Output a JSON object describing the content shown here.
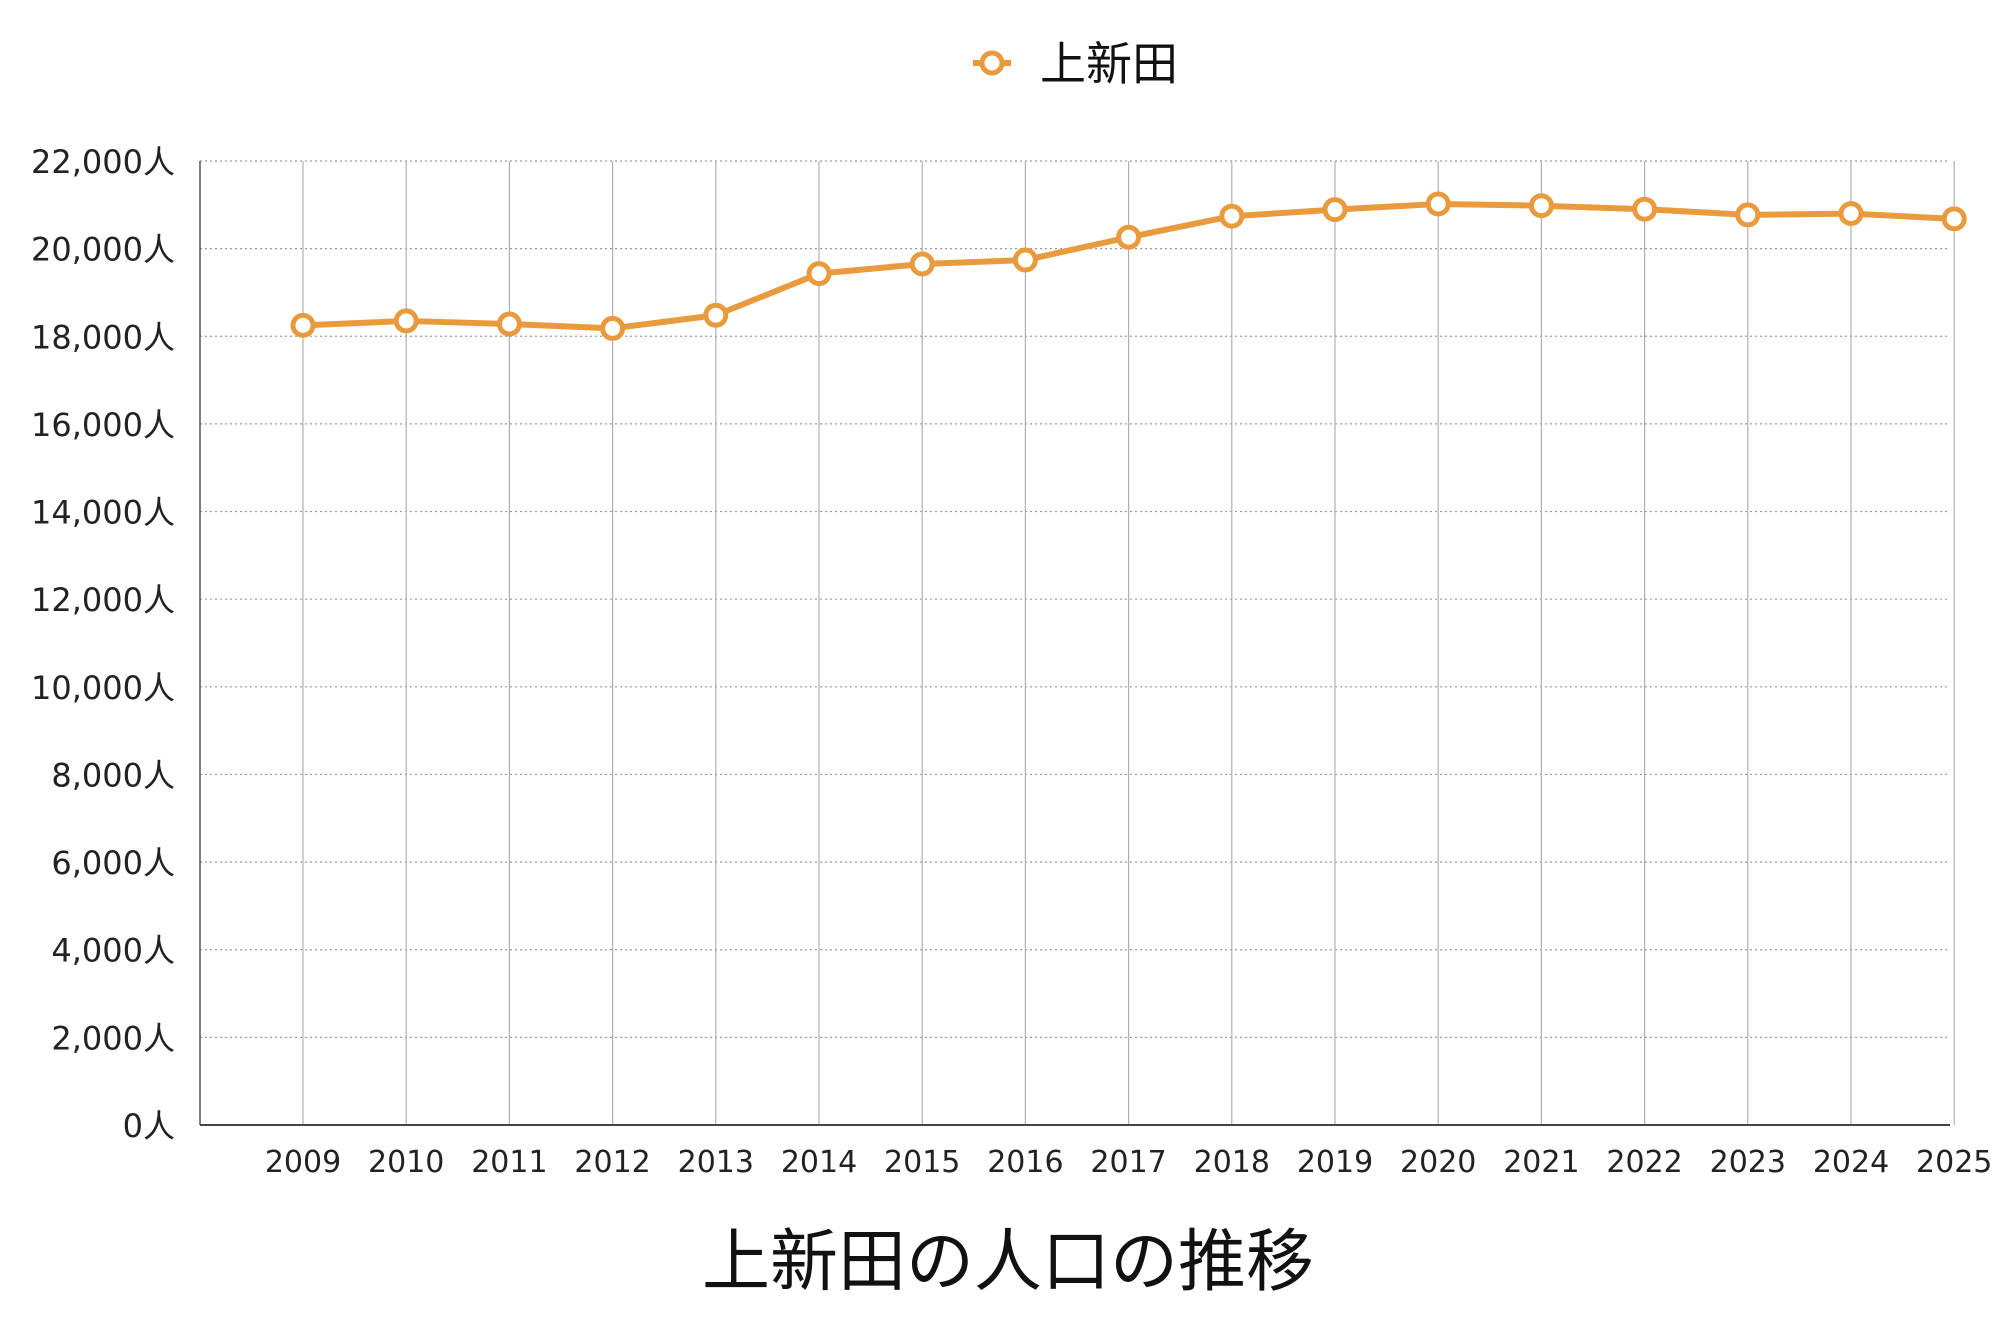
{
  "chart_data": {
    "type": "line",
    "title": "上新田の人口の推移",
    "xlabel": "",
    "ylabel": "",
    "categories": [
      "2009",
      "2010",
      "2011",
      "2012",
      "2013",
      "2014",
      "2015",
      "2016",
      "2017",
      "2018",
      "2019",
      "2020",
      "2021",
      "2022",
      "2023",
      "2024",
      "2025"
    ],
    "series": [
      {
        "name": "上新田",
        "color": "#E89A3C",
        "values": [
          18250,
          18350,
          18280,
          18180,
          18480,
          19430,
          19650,
          19740,
          20260,
          20740,
          20890,
          21020,
          20980,
          20900,
          20770,
          20800,
          20680
        ]
      }
    ],
    "ylim": [
      0,
      22000
    ],
    "yticks": [
      0,
      2000,
      4000,
      6000,
      8000,
      10000,
      12000,
      14000,
      16000,
      18000,
      20000,
      22000
    ],
    "ytick_labels": [
      "0人",
      "2,000人",
      "4,000人",
      "6,000人",
      "8,000人",
      "10,000人",
      "12,000人",
      "14,000人",
      "16,000人",
      "18,000人",
      "20,000人",
      "22,000人"
    ],
    "grid": true,
    "legend_position": "top-center",
    "marker": "hollow-circle"
  }
}
